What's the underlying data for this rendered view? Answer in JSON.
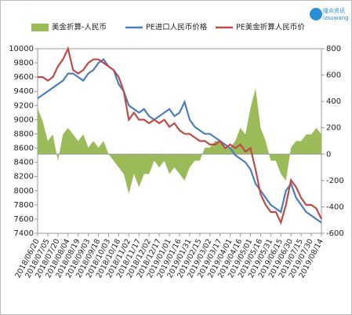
{
  "chart_data": {
    "type": "combo",
    "logo": [
      "隆众资讯",
      "lzsuwang"
    ],
    "categories": [
      "2018/06/20",
      null,
      "2018/07/05",
      null,
      "2018/07/20",
      null,
      "2018/08/04",
      null,
      "2018/08/19",
      null,
      "2018/09/03",
      null,
      "2018/09/18",
      null,
      "2018/10/03",
      null,
      "2018/10/18",
      null,
      "2018/11/02",
      null,
      "2018/11/17",
      null,
      "2018/12/02",
      null,
      "2018/12/17",
      null,
      "2019/01/01",
      null,
      "2019/01/16",
      null,
      "2019/01/31",
      null,
      "2019/02/15",
      null,
      "2019/03/02",
      null,
      "2019/03/17",
      null,
      "2019/04/01",
      null,
      "2019/04/16",
      null,
      "2019/05/01",
      null,
      "2019/05/16",
      null,
      "2019/05/31",
      null,
      "2019/06/15",
      null,
      "2019/06/30",
      null,
      "2019/07/15",
      null,
      "2019/07/30",
      null,
      "2019/08/14"
    ],
    "series": [
      {
        "name": "美金折算-人民币",
        "type": "area",
        "axis": "y2",
        "color": "#9bbb59",
        "values": [
          350,
          250,
          100,
          150,
          -50,
          150,
          200,
          150,
          100,
          150,
          50,
          100,
          50,
          100,
          0,
          -50,
          -100,
          -150,
          -300,
          -150,
          -250,
          -150,
          -150,
          -50,
          -100,
          -50,
          -150,
          -100,
          -150,
          -200,
          -100,
          -50,
          -50,
          50,
          50,
          100,
          100,
          50,
          50,
          100,
          200,
          150,
          350,
          500,
          200,
          100,
          -50,
          -50,
          -150,
          -200,
          50,
          100,
          100,
          150,
          150,
          200,
          150
        ]
      },
      {
        "name": "PE进口人民币价格",
        "type": "line",
        "color": "#4a7ebb",
        "values": [
          9300,
          9350,
          9400,
          9450,
          9500,
          9550,
          9650,
          9650,
          9600,
          9550,
          9650,
          9700,
          9800,
          9850,
          9750,
          9700,
          9500,
          9400,
          9200,
          9150,
          9100,
          9150,
          9050,
          9000,
          9050,
          9100,
          9150,
          9050,
          9100,
          9250,
          9000,
          8900,
          8850,
          8800,
          8800,
          8750,
          8700,
          8650,
          8600,
          8500,
          8450,
          8400,
          8300,
          8100,
          8000,
          7900,
          7800,
          7750,
          7700,
          8000,
          8100,
          7900,
          7800,
          7700,
          7650,
          7600,
          7550
        ]
      },
      {
        "name": "PE美金折算人民币价",
        "type": "line",
        "color": "#be4b48",
        "values": [
          9600,
          9600,
          9550,
          9600,
          9750,
          9850,
          10000,
          9700,
          9650,
          9700,
          9800,
          9850,
          9850,
          9800,
          9750,
          9700,
          9600,
          9400,
          9000,
          9100,
          9000,
          9000,
          8950,
          9000,
          8950,
          9000,
          8900,
          8950,
          8850,
          8800,
          8800,
          8750,
          8700,
          8700,
          8650,
          8650,
          8700,
          8600,
          8650,
          8600,
          8650,
          8550,
          8600,
          8300,
          7950,
          7800,
          7700,
          7700,
          7550,
          7800,
          8150,
          8050,
          7900,
          7800,
          7800,
          7750,
          7600
        ]
      }
    ],
    "ylim": [
      7400,
      10000
    ],
    "yticks": [
      7400,
      7600,
      7800,
      8000,
      8200,
      8400,
      8600,
      8800,
      9000,
      9200,
      9400,
      9600,
      9800,
      10000
    ],
    "y2lim": [
      -600,
      800
    ],
    "y2ticks": [
      -600,
      -400,
      -200,
      0,
      200,
      400,
      600,
      800
    ],
    "legend": "top"
  }
}
